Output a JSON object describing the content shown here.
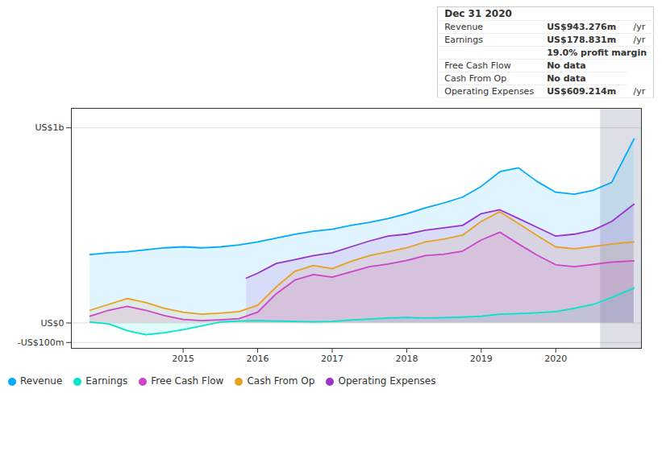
{
  "chart_data": {
    "type": "area",
    "xlim": [
      2013.5,
      2021.15
    ],
    "xticks": [
      2015,
      2016,
      2017,
      2018,
      2019,
      2020
    ],
    "ylim": [
      -130,
      1100
    ],
    "yticks": [
      {
        "value": 1000,
        "label": "US$1b"
      },
      {
        "value": 0,
        "label": "US$0"
      },
      {
        "value": -100,
        "label": "-US$100m"
      }
    ],
    "grid": true,
    "legend": "bottom",
    "highlight": [
      2020.6,
      2021.15
    ],
    "series": [
      {
        "name": "Revenue",
        "color": "#00aaff",
        "x": [
          2013.75,
          2014.0,
          2014.25,
          2014.5,
          2014.75,
          2015.0,
          2015.25,
          2015.5,
          2015.75,
          2016.0,
          2016.25,
          2016.5,
          2016.75,
          2017.0,
          2017.25,
          2017.5,
          2017.75,
          2018.0,
          2018.25,
          2018.5,
          2018.75,
          2019.0,
          2019.25,
          2019.5,
          2019.75,
          2020.0,
          2020.25,
          2020.5,
          2020.75,
          2021.05
        ],
        "values": [
          350,
          360,
          365,
          375,
          385,
          390,
          385,
          390,
          400,
          415,
          435,
          455,
          470,
          480,
          500,
          515,
          535,
          560,
          590,
          615,
          645,
          700,
          775,
          795,
          725,
          670,
          660,
          680,
          720,
          943
        ]
      },
      {
        "name": "Earnings",
        "color": "#00e5cc",
        "x": [
          2013.75,
          2014.0,
          2014.25,
          2014.5,
          2014.75,
          2015.0,
          2015.25,
          2015.5,
          2015.75,
          2016.0,
          2016.25,
          2016.5,
          2016.75,
          2017.0,
          2017.25,
          2017.5,
          2017.75,
          2018.0,
          2018.25,
          2018.5,
          2018.75,
          2019.0,
          2019.25,
          2019.5,
          2019.75,
          2020.0,
          2020.25,
          2020.5,
          2020.75,
          2021.05
        ],
        "values": [
          5,
          -5,
          -40,
          -60,
          -50,
          -35,
          -15,
          5,
          10,
          12,
          10,
          8,
          6,
          8,
          15,
          20,
          25,
          28,
          25,
          27,
          30,
          35,
          45,
          48,
          52,
          58,
          75,
          95,
          130,
          179
        ]
      },
      {
        "name": "Free Cash Flow",
        "color": "#cc44cc",
        "x": [
          2013.75,
          2014.0,
          2014.25,
          2014.5,
          2014.75,
          2015.0,
          2015.25,
          2015.5,
          2015.75,
          2016.0,
          2016.25,
          2016.5,
          2016.75,
          2017.0,
          2017.25,
          2017.5,
          2017.75,
          2018.0,
          2018.25,
          2018.5,
          2018.75,
          2019.0,
          2019.25,
          2019.5,
          2019.75,
          2020.0,
          2020.25,
          2020.5,
          2020.75,
          2021.05
        ],
        "values": [
          35,
          65,
          85,
          65,
          38,
          18,
          12,
          16,
          22,
          55,
          150,
          220,
          248,
          235,
          262,
          288,
          302,
          320,
          345,
          352,
          368,
          425,
          465,
          405,
          348,
          298,
          288,
          300,
          312,
          318
        ]
      },
      {
        "name": "Cash From Op",
        "color": "#e8a020",
        "x": [
          2013.75,
          2014.0,
          2014.25,
          2014.5,
          2014.75,
          2015.0,
          2015.25,
          2015.5,
          2015.75,
          2016.0,
          2016.25,
          2016.5,
          2016.75,
          2017.0,
          2017.25,
          2017.5,
          2017.75,
          2018.0,
          2018.25,
          2018.5,
          2018.75,
          2019.0,
          2019.25,
          2019.5,
          2019.75,
          2020.0,
          2020.25,
          2020.5,
          2020.75,
          2021.05
        ],
        "values": [
          65,
          95,
          125,
          105,
          75,
          55,
          45,
          50,
          58,
          90,
          185,
          265,
          295,
          278,
          315,
          345,
          365,
          385,
          415,
          430,
          450,
          520,
          570,
          510,
          448,
          390,
          380,
          392,
          405,
          415
        ]
      },
      {
        "name": "Operating Expenses",
        "color": "#9933cc",
        "x": [
          2015.85,
          2016.0,
          2016.25,
          2016.5,
          2016.75,
          2017.0,
          2017.25,
          2017.5,
          2017.75,
          2018.0,
          2018.25,
          2018.5,
          2018.75,
          2019.0,
          2019.25,
          2019.5,
          2019.75,
          2020.0,
          2020.25,
          2020.5,
          2020.75,
          2021.05
        ],
        "values": [
          230,
          255,
          305,
          325,
          345,
          360,
          390,
          420,
          445,
          455,
          475,
          488,
          500,
          560,
          580,
          535,
          490,
          445,
          455,
          475,
          520,
          609
        ]
      }
    ],
    "annotations": [
      [
        "Dec 31 2020"
      ],
      [
        "Revenue",
        "US$943.276m",
        "/yr"
      ],
      [
        "Earnings",
        "US$178.831m",
        "/yr"
      ],
      [
        "19.0% profit margin"
      ],
      [
        "Free Cash Flow",
        "No data"
      ],
      [
        "Cash From Op",
        "No data"
      ],
      [
        "Operating Expenses",
        "US$609.214m",
        "/yr"
      ]
    ]
  }
}
